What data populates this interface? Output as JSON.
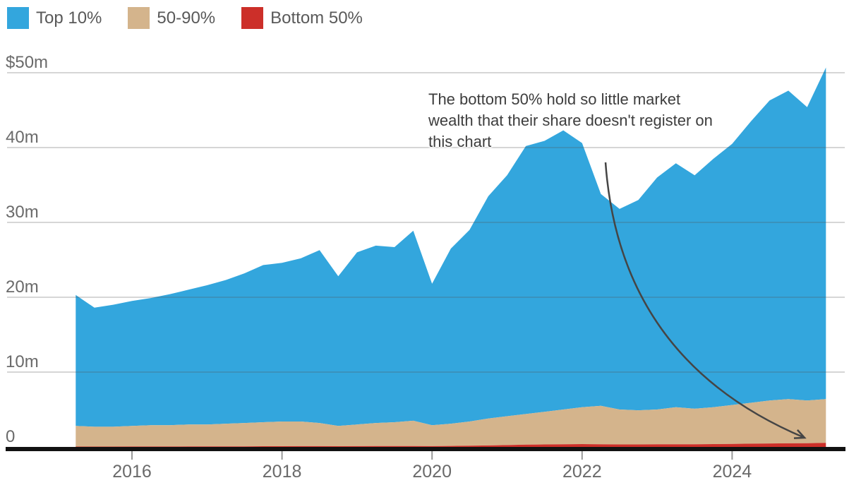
{
  "page": {
    "background": "#ffffff"
  },
  "legend": {
    "items": [
      {
        "label": "Top 10%",
        "color": "#33a6dd"
      },
      {
        "label": "50-90%",
        "color": "#d4b48c"
      },
      {
        "label": "Bottom 50%",
        "color": "#cc2f29"
      }
    ]
  },
  "annotation": {
    "lines": [
      "The bottom 50% hold so little market",
      "wealth that their share doesn't register on",
      "this chart"
    ]
  },
  "chart_data": {
    "type": "area",
    "stacked": true,
    "title": "",
    "xlabel": "",
    "ylabel": "",
    "unit": "$m",
    "ylim": [
      0,
      50
    ],
    "grid": "horizontal",
    "legend_position": "top-left",
    "x_years": [
      2015.25,
      2015.5,
      2015.75,
      2016.0,
      2016.25,
      2016.5,
      2016.75,
      2017.0,
      2017.25,
      2017.5,
      2017.75,
      2018.0,
      2018.25,
      2018.5,
      2018.75,
      2019.0,
      2019.25,
      2019.5,
      2019.75,
      2020.0,
      2020.25,
      2020.5,
      2020.75,
      2021.0,
      2021.25,
      2021.5,
      2021.75,
      2022.0,
      2022.25,
      2022.5,
      2022.75,
      2023.0,
      2023.25,
      2023.5,
      2023.75,
      2024.0,
      2024.25,
      2024.5,
      2024.75,
      2025.0,
      2025.25
    ],
    "series": [
      {
        "name": "Bottom 50%",
        "color": "#cc2f29",
        "values": [
          0.05,
          0.05,
          0.05,
          0.06,
          0.06,
          0.06,
          0.07,
          0.07,
          0.08,
          0.08,
          0.09,
          0.09,
          0.1,
          0.1,
          0.09,
          0.1,
          0.11,
          0.11,
          0.12,
          0.1,
          0.13,
          0.16,
          0.2,
          0.25,
          0.3,
          0.33,
          0.36,
          0.38,
          0.36,
          0.33,
          0.33,
          0.35,
          0.36,
          0.36,
          0.38,
          0.4,
          0.43,
          0.46,
          0.48,
          0.5,
          0.55
        ]
      },
      {
        "name": "50-90%",
        "color": "#d4b48c",
        "values": [
          2.75,
          2.65,
          2.65,
          2.74,
          2.84,
          2.84,
          2.93,
          2.93,
          3.02,
          3.12,
          3.21,
          3.31,
          3.3,
          3.1,
          2.71,
          2.9,
          3.09,
          3.19,
          3.38,
          2.8,
          2.97,
          3.24,
          3.6,
          3.85,
          4.1,
          4.37,
          4.64,
          4.92,
          5.14,
          4.67,
          4.57,
          4.65,
          4.94,
          4.74,
          4.92,
          5.2,
          5.47,
          5.74,
          5.92,
          5.7,
          5.85
        ]
      },
      {
        "name": "Top 10%",
        "color": "#33a6dd",
        "values": [
          17.5,
          15.9,
          16.3,
          16.7,
          17.0,
          17.5,
          18.0,
          18.6,
          19.2,
          20.0,
          21.0,
          21.2,
          21.8,
          23.1,
          20.0,
          23.0,
          23.7,
          23.4,
          25.4,
          18.9,
          23.4,
          25.6,
          29.7,
          32.2,
          35.8,
          36.2,
          37.3,
          35.3,
          28.3,
          26.8,
          28.1,
          31.0,
          32.6,
          31.2,
          33.2,
          34.9,
          37.6,
          40.1,
          41.2,
          39.2,
          44.3
        ]
      }
    ],
    "xticks": [
      {
        "value": 2016,
        "label": "2016"
      },
      {
        "value": 2018,
        "label": "2018"
      },
      {
        "value": 2020,
        "label": "2020"
      },
      {
        "value": 2022,
        "label": "2022"
      },
      {
        "value": 2024,
        "label": "2024"
      }
    ],
    "yticks": [
      {
        "value": 0,
        "label": "0"
      },
      {
        "value": 10,
        "label": "10m"
      },
      {
        "value": 20,
        "label": "20m"
      },
      {
        "value": 30,
        "label": "30m"
      },
      {
        "value": 40,
        "label": "40m"
      },
      {
        "value": 50,
        "label": "$50m"
      }
    ]
  },
  "colors": {
    "axis": "#111111",
    "tick": "#9a9a9a",
    "grid": "rgba(85,85,85,0.24)",
    "axis_label": "#6a6a6a",
    "annotation_text": "#3d3d3d",
    "arrow": "#454545"
  }
}
